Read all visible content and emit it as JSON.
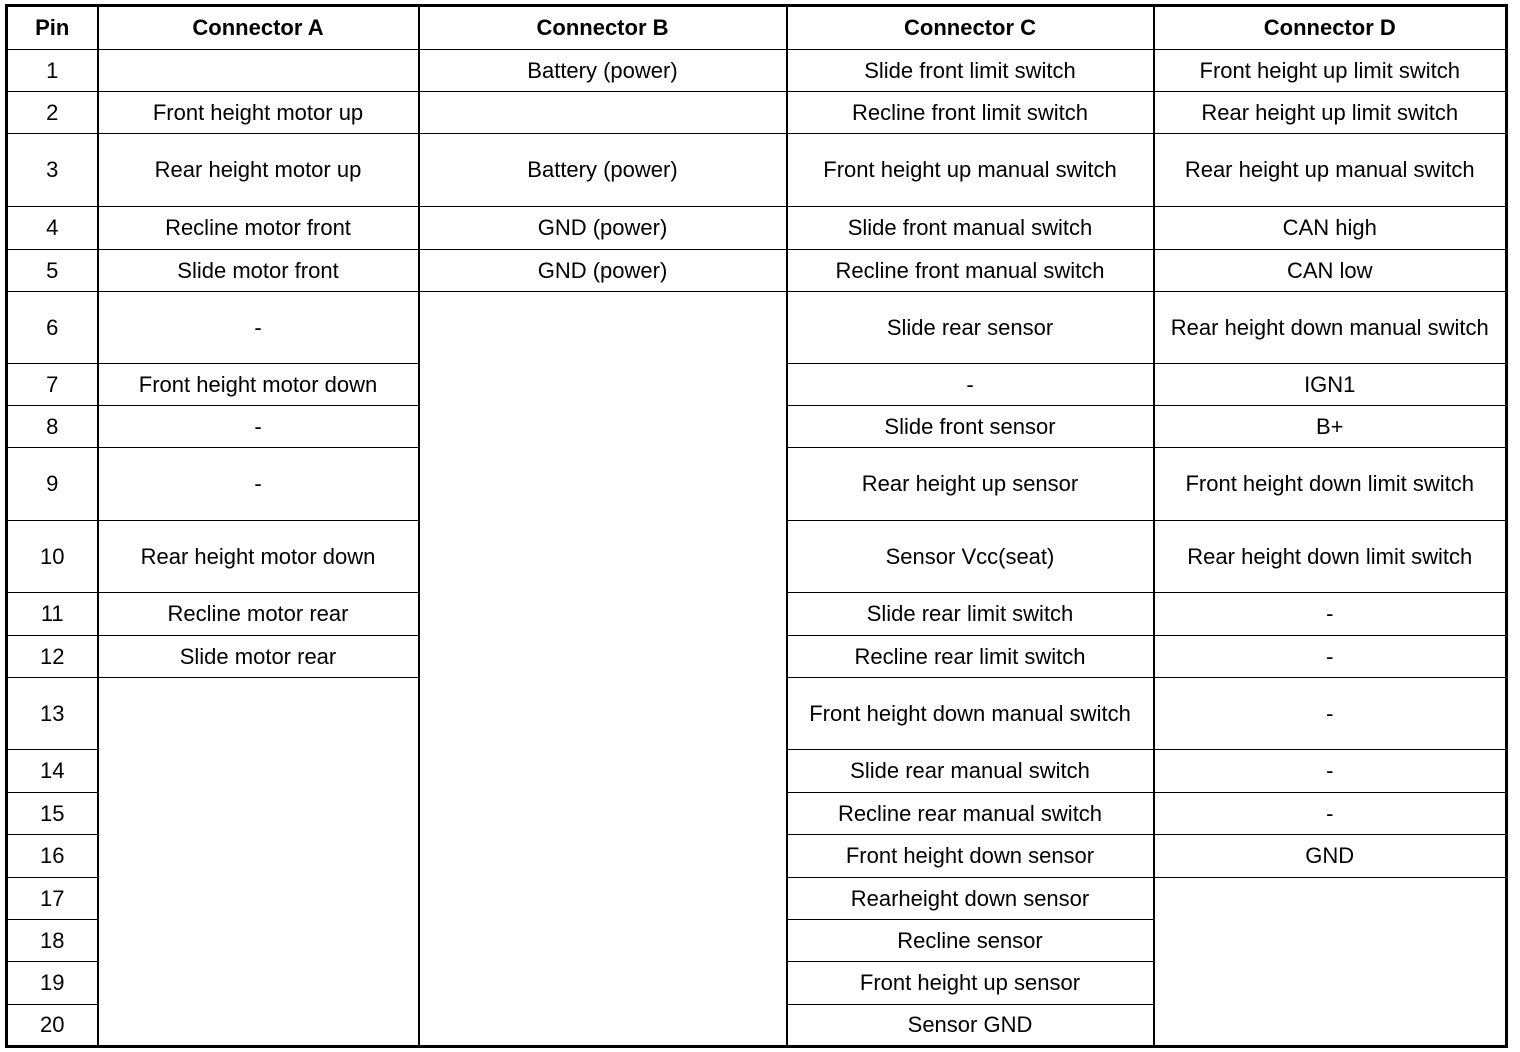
{
  "headers": [
    "Pin",
    "Connector A",
    "Connector B",
    "Connector C",
    "Connector D"
  ],
  "rows": [
    {
      "pin": "1",
      "a": "",
      "b": "Battery (power)",
      "c": "Slide front limit switch",
      "d": "Front height up limit switch"
    },
    {
      "pin": "2",
      "a": "Front height motor up",
      "b": "",
      "c": "Recline front limit switch",
      "d": "Rear height up limit switch"
    },
    {
      "pin": "3",
      "a": "Rear height motor up",
      "b": "Battery (power)",
      "c": "Front height up manual switch",
      "d": "Rear height up manual switch"
    },
    {
      "pin": "4",
      "a": "Recline motor front",
      "b": "GND (power)",
      "c": "Slide front manual switch",
      "d": "CAN high"
    },
    {
      "pin": "5",
      "a": "Slide motor front",
      "b": "GND (power)",
      "c": "Recline front manual switch",
      "d": "CAN low"
    },
    {
      "pin": "6",
      "a": "-",
      "b": null,
      "c": "Slide rear sensor",
      "d": "Rear height down manual switch"
    },
    {
      "pin": "7",
      "a": "Front height motor down",
      "b": null,
      "c": "-",
      "d": "IGN1"
    },
    {
      "pin": "8",
      "a": "-",
      "b": null,
      "c": "Slide front sensor",
      "d": "B+"
    },
    {
      "pin": "9",
      "a": "-",
      "b": null,
      "c": "Rear height up sensor",
      "d": "Front height down limit switch"
    },
    {
      "pin": "10",
      "a": "Rear height motor down",
      "b": null,
      "c": "Sensor Vcc(seat)",
      "d": "Rear height down limit switch"
    },
    {
      "pin": "11",
      "a": "Recline motor rear",
      "b": null,
      "c": "Slide rear limit switch",
      "d": "-"
    },
    {
      "pin": "12",
      "a": "Slide motor rear",
      "b": null,
      "c": "Recline rear limit switch",
      "d": "-"
    },
    {
      "pin": "13",
      "a": null,
      "b": null,
      "c": "Front height down manual switch",
      "d": "-"
    },
    {
      "pin": "14",
      "a": null,
      "b": null,
      "c": "Slide rear manual switch",
      "d": "-"
    },
    {
      "pin": "15",
      "a": null,
      "b": null,
      "c": "Recline rear manual switch",
      "d": "-"
    },
    {
      "pin": "16",
      "a": null,
      "b": null,
      "c": "Front height down sensor",
      "d": "GND"
    },
    {
      "pin": "17",
      "a": null,
      "b": null,
      "c": "Rearheight down sensor",
      "d": null
    },
    {
      "pin": "18",
      "a": null,
      "b": null,
      "c": "Recline sensor",
      "d": null
    },
    {
      "pin": "19",
      "a": null,
      "b": null,
      "c": "Front height up sensor",
      "d": null
    },
    {
      "pin": "20",
      "a": null,
      "b": null,
      "c": "Sensor GND",
      "d": null
    }
  ]
}
